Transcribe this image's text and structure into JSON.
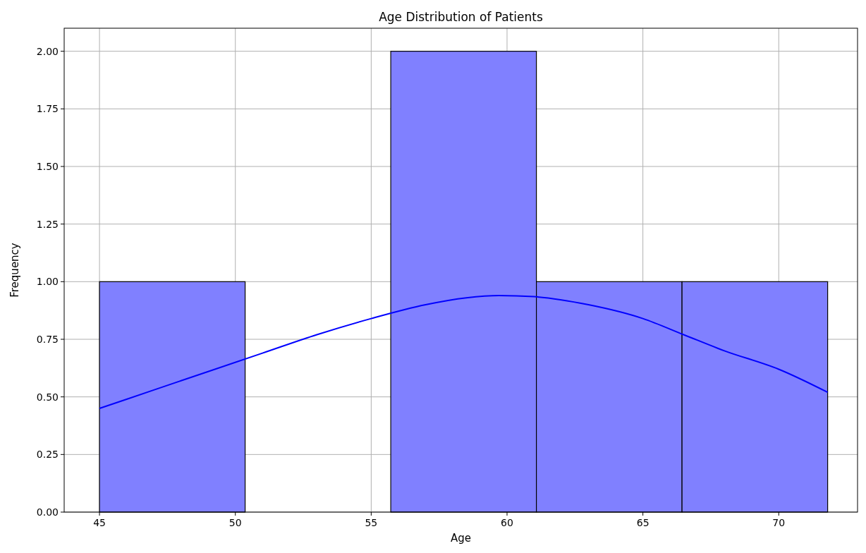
{
  "chart_data": {
    "type": "histogram",
    "title": "Age Distribution of Patients",
    "xlabel": "Age",
    "ylabel": "Frequency",
    "bins": [
      45,
      50.36,
      55.72,
      61.08,
      66.44,
      71.8
    ],
    "values": [
      1,
      0,
      2,
      1,
      1
    ],
    "color": "#8080ff",
    "series": [
      {
        "type": "line",
        "color": "#0000ff",
        "x": [
          45,
          47,
          49,
          51,
          53,
          55,
          57,
          58.5,
          59.7,
          61,
          63,
          65,
          66.5,
          68,
          70,
          71.8
        ],
        "values": [
          0.45,
          0.53,
          0.61,
          0.69,
          0.77,
          0.84,
          0.9,
          0.93,
          0.94,
          0.935,
          0.9,
          0.84,
          0.77,
          0.7,
          0.62,
          0.52
        ]
      }
    ],
    "xlim": [
      43.7,
      72.9
    ],
    "xticks": [
      45,
      50,
      55,
      60,
      65,
      70
    ],
    "ylim": [
      0,
      2.1
    ],
    "yticks": [
      {
        "value": 0,
        "label": "0.00"
      },
      {
        "value": 0.25,
        "label": "0.25"
      },
      {
        "value": 0.5,
        "label": "0.50"
      },
      {
        "value": 0.75,
        "label": "0.75"
      },
      {
        "value": 1,
        "label": "1.00"
      },
      {
        "value": 1.25,
        "label": "1.25"
      },
      {
        "value": 1.5,
        "label": "1.50"
      },
      {
        "value": 1.75,
        "label": "1.75"
      },
      {
        "value": 2,
        "label": "2.00"
      }
    ],
    "grid": true
  }
}
